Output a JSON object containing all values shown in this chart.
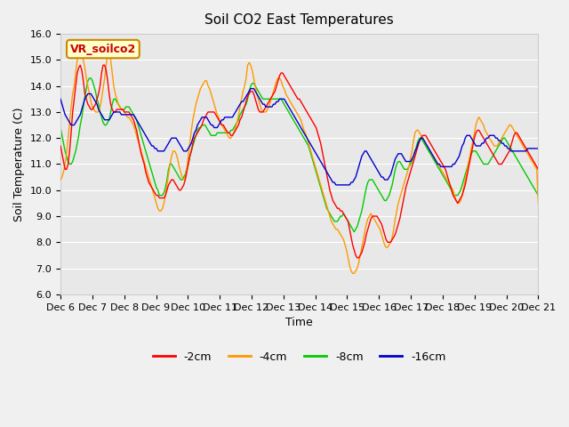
{
  "title": "Soil CO2 East Temperatures",
  "xlabel": "Time",
  "ylabel": "Soil Temperature (C)",
  "ylim": [
    6.0,
    16.0
  ],
  "yticks": [
    6.0,
    7.0,
    8.0,
    9.0,
    10.0,
    11.0,
    12.0,
    13.0,
    14.0,
    15.0,
    16.0
  ],
  "xtick_labels": [
    "Dec 6",
    "Dec 7",
    "Dec 8",
    "Dec 9",
    "Dec 10",
    "Dec 11",
    "Dec 12",
    "Dec 13",
    "Dec 14",
    "Dec 15",
    "Dec 16",
    "Dec 17",
    "Dec 18",
    "Dec 19",
    "Dec 20",
    "Dec 21"
  ],
  "annotation_text": "VR_soilco2",
  "annotation_box_color": "#ffffcc",
  "annotation_text_color": "#cc0000",
  "colors": {
    "m2cm": "#ff0000",
    "m4cm": "#ff9900",
    "m8cm": "#00cc00",
    "m16cm": "#0000cc"
  },
  "legend_labels": [
    "-2cm",
    "-4cm",
    "-8cm",
    "-16cm"
  ],
  "background_color": "#e8e8e8",
  "data_2cm": [
    11.7,
    11.4,
    11.1,
    10.8,
    10.8,
    11.0,
    11.5,
    12.2,
    13.0,
    13.5,
    14.0,
    14.5,
    14.7,
    14.8,
    14.6,
    14.2,
    13.7,
    13.5,
    13.3,
    13.2,
    13.1,
    13.1,
    13.2,
    13.3,
    13.5,
    13.7,
    14.0,
    14.5,
    14.8,
    14.8,
    14.6,
    14.2,
    13.7,
    13.3,
    13.1,
    13.0,
    13.0,
    13.1,
    13.1,
    13.1,
    13.1,
    13.1,
    13.0,
    13.0,
    13.0,
    13.0,
    12.9,
    12.8,
    12.7,
    12.5,
    12.3,
    12.0,
    11.7,
    11.4,
    11.2,
    11.0,
    10.7,
    10.5,
    10.3,
    10.2,
    10.1,
    10.0,
    9.9,
    9.8,
    9.8,
    9.7,
    9.7,
    9.7,
    9.7,
    9.8,
    10.0,
    10.2,
    10.3,
    10.4,
    10.4,
    10.3,
    10.2,
    10.1,
    10.0,
    10.0,
    10.1,
    10.2,
    10.4,
    10.7,
    11.0,
    11.3,
    11.5,
    11.8,
    12.0,
    12.1,
    12.2,
    12.3,
    12.4,
    12.5,
    12.7,
    12.8,
    12.9,
    13.0,
    13.0,
    13.0,
    13.0,
    13.0,
    12.9,
    12.8,
    12.7,
    12.6,
    12.5,
    12.5,
    12.4,
    12.3,
    12.2,
    12.2,
    12.1,
    12.1,
    12.2,
    12.3,
    12.4,
    12.5,
    12.7,
    12.8,
    13.0,
    13.2,
    13.4,
    13.6,
    13.7,
    13.8,
    13.8,
    13.7,
    13.5,
    13.3,
    13.1,
    13.0,
    13.0,
    13.0,
    13.1,
    13.2,
    13.3,
    13.4,
    13.5,
    13.6,
    13.7,
    13.8,
    14.0,
    14.2,
    14.4,
    14.5,
    14.5,
    14.4,
    14.3,
    14.2,
    14.1,
    14.0,
    13.9,
    13.8,
    13.7,
    13.6,
    13.5,
    13.5,
    13.4,
    13.3,
    13.2,
    13.1,
    13.0,
    12.9,
    12.8,
    12.7,
    12.6,
    12.5,
    12.4,
    12.2,
    12.0,
    11.8,
    11.5,
    11.2,
    10.9,
    10.6,
    10.3,
    10.0,
    9.8,
    9.6,
    9.5,
    9.4,
    9.3,
    9.3,
    9.2,
    9.2,
    9.1,
    9.0,
    8.9,
    8.8,
    8.5,
    8.2,
    7.9,
    7.7,
    7.5,
    7.4,
    7.4,
    7.5,
    7.6,
    7.8,
    8.0,
    8.3,
    8.5,
    8.7,
    8.9,
    9.0,
    9.0,
    9.0,
    9.0,
    8.9,
    8.8,
    8.7,
    8.5,
    8.3,
    8.1,
    8.0,
    8.0,
    8.0,
    8.1,
    8.2,
    8.3,
    8.5,
    8.7,
    8.9,
    9.2,
    9.5,
    9.8,
    10.1,
    10.3,
    10.5,
    10.7,
    10.9,
    11.1,
    11.3,
    11.5,
    11.7,
    11.9,
    12.0,
    12.1,
    12.1,
    12.1,
    12.0,
    11.9,
    11.8,
    11.7,
    11.6,
    11.5,
    11.4,
    11.3,
    11.2,
    11.1,
    11.0,
    10.9,
    10.8,
    10.6,
    10.4,
    10.2,
    10.0,
    9.8,
    9.7,
    9.6,
    9.5,
    9.6,
    9.7,
    9.8,
    10.0,
    10.2,
    10.5,
    10.8,
    11.1,
    11.4,
    11.7,
    12.0,
    12.2,
    12.3,
    12.3,
    12.2,
    12.1,
    12.0,
    11.9,
    11.8,
    11.7,
    11.6,
    11.5,
    11.4,
    11.3,
    11.2,
    11.1,
    11.0,
    11.0,
    11.0,
    11.1,
    11.2,
    11.3,
    11.4,
    11.5,
    11.7,
    11.9,
    12.1,
    12.2,
    12.2,
    12.1,
    12.0,
    11.9,
    11.8,
    11.7,
    11.6,
    11.5,
    11.4,
    11.3,
    11.2,
    11.1,
    11.0,
    10.9,
    10.8,
    10.6,
    10.4,
    10.2,
    10.0,
    9.9,
    9.8
  ],
  "data_4cm": [
    10.4,
    10.5,
    10.7,
    11.0,
    11.4,
    12.0,
    12.6,
    13.2,
    13.7,
    14.0,
    14.5,
    15.0,
    15.2,
    15.3,
    15.2,
    15.0,
    14.7,
    14.3,
    14.0,
    13.7,
    13.4,
    13.2,
    13.1,
    13.0,
    13.0,
    13.0,
    13.2,
    13.5,
    13.9,
    14.3,
    14.8,
    15.2,
    15.3,
    15.0,
    14.5,
    14.0,
    13.7,
    13.5,
    13.3,
    13.2,
    13.1,
    13.1,
    13.0,
    12.9,
    12.8,
    12.8,
    12.7,
    12.6,
    12.5,
    12.3,
    12.1,
    11.9,
    11.7,
    11.5,
    11.3,
    11.1,
    10.9,
    10.7,
    10.5,
    10.3,
    10.1,
    9.9,
    9.7,
    9.5,
    9.3,
    9.2,
    9.2,
    9.3,
    9.5,
    9.8,
    10.2,
    10.6,
    11.0,
    11.3,
    11.5,
    11.5,
    11.4,
    11.2,
    10.9,
    10.7,
    10.5,
    10.4,
    10.5,
    10.8,
    11.3,
    11.8,
    12.3,
    12.7,
    13.0,
    13.3,
    13.5,
    13.7,
    13.9,
    14.0,
    14.1,
    14.2,
    14.2,
    14.0,
    13.9,
    13.7,
    13.5,
    13.3,
    13.1,
    12.9,
    12.8,
    12.6,
    12.5,
    12.4,
    12.3,
    12.2,
    12.1,
    12.0,
    12.0,
    12.1,
    12.2,
    12.4,
    12.6,
    12.9,
    13.2,
    13.5,
    13.8,
    14.0,
    14.3,
    14.8,
    14.9,
    14.8,
    14.6,
    14.3,
    14.0,
    13.7,
    13.5,
    13.3,
    13.1,
    13.0,
    13.0,
    13.0,
    13.1,
    13.2,
    13.4,
    13.6,
    13.8,
    14.0,
    14.2,
    14.3,
    14.3,
    14.2,
    14.0,
    13.9,
    13.7,
    13.6,
    13.5,
    13.4,
    13.3,
    13.2,
    13.1,
    13.0,
    12.9,
    12.8,
    12.7,
    12.5,
    12.3,
    12.2,
    12.0,
    11.8,
    11.6,
    11.4,
    11.2,
    11.0,
    10.8,
    10.6,
    10.4,
    10.2,
    10.0,
    9.8,
    9.6,
    9.4,
    9.2,
    9.0,
    8.8,
    8.7,
    8.6,
    8.5,
    8.5,
    8.4,
    8.3,
    8.2,
    8.1,
    7.9,
    7.7,
    7.4,
    7.1,
    6.9,
    6.8,
    6.8,
    6.9,
    7.0,
    7.2,
    7.5,
    7.8,
    8.1,
    8.4,
    8.7,
    8.9,
    9.0,
    9.1,
    9.0,
    8.9,
    8.8,
    8.7,
    8.6,
    8.5,
    8.3,
    8.1,
    7.9,
    7.8,
    7.8,
    7.9,
    8.0,
    8.2,
    8.5,
    8.9,
    9.2,
    9.5,
    9.7,
    9.9,
    10.1,
    10.3,
    10.5,
    10.7,
    10.9,
    11.2,
    11.5,
    11.9,
    12.2,
    12.3,
    12.3,
    12.2,
    12.1,
    12.0,
    11.9,
    11.8,
    11.7,
    11.6,
    11.5,
    11.4,
    11.3,
    11.2,
    11.1,
    11.0,
    10.9,
    10.8,
    10.7,
    10.6,
    10.5,
    10.4,
    10.3,
    10.2,
    10.1,
    10.0,
    9.8,
    9.6,
    9.5,
    9.5,
    9.6,
    9.8,
    10.1,
    10.4,
    10.7,
    11.0,
    11.3,
    11.6,
    11.9,
    12.2,
    12.5,
    12.7,
    12.8,
    12.7,
    12.6,
    12.5,
    12.3,
    12.2,
    12.1,
    12.0,
    11.9,
    11.8,
    11.7,
    11.7,
    11.7,
    11.8,
    11.9,
    12.0,
    12.1,
    12.2,
    12.3,
    12.4,
    12.5,
    12.5,
    12.4,
    12.3,
    12.2,
    12.1,
    12.0,
    11.9,
    11.8,
    11.7,
    11.6,
    11.5,
    11.4,
    11.3,
    11.2,
    11.1,
    11.0,
    10.9,
    10.8,
    9.5
  ],
  "data_8cm": [
    12.4,
    12.1,
    11.8,
    11.5,
    11.3,
    11.1,
    11.0,
    11.0,
    11.1,
    11.3,
    11.5,
    11.8,
    12.1,
    12.5,
    12.8,
    13.2,
    13.6,
    13.9,
    14.2,
    14.3,
    14.3,
    14.2,
    14.0,
    13.8,
    13.5,
    13.3,
    13.0,
    12.8,
    12.6,
    12.5,
    12.5,
    12.6,
    12.7,
    13.0,
    13.3,
    13.5,
    13.5,
    13.4,
    13.3,
    13.2,
    13.1,
    13.1,
    13.1,
    13.2,
    13.2,
    13.2,
    13.1,
    13.0,
    12.9,
    12.8,
    12.7,
    12.5,
    12.3,
    12.1,
    11.9,
    11.7,
    11.5,
    11.3,
    11.1,
    10.9,
    10.7,
    10.5,
    10.3,
    10.1,
    10.0,
    9.8,
    9.8,
    9.8,
    9.9,
    10.1,
    10.4,
    10.8,
    11.0,
    11.0,
    10.9,
    10.8,
    10.7,
    10.6,
    10.5,
    10.4,
    10.4,
    10.5,
    10.6,
    10.8,
    11.0,
    11.3,
    11.5,
    11.7,
    11.9,
    12.1,
    12.3,
    12.4,
    12.4,
    12.5,
    12.5,
    12.5,
    12.4,
    12.3,
    12.2,
    12.1,
    12.1,
    12.1,
    12.1,
    12.2,
    12.2,
    12.2,
    12.2,
    12.2,
    12.2,
    12.2,
    12.2,
    12.2,
    12.3,
    12.3,
    12.4,
    12.5,
    12.6,
    12.7,
    12.9,
    13.0,
    13.1,
    13.2,
    13.3,
    13.5,
    13.8,
    14.0,
    14.1,
    14.1,
    14.0,
    13.9,
    13.8,
    13.7,
    13.6,
    13.5,
    13.5,
    13.5,
    13.5,
    13.5,
    13.5,
    13.5,
    13.5,
    13.5,
    13.5,
    13.5,
    13.5,
    13.5,
    13.4,
    13.3,
    13.2,
    13.1,
    13.0,
    12.9,
    12.8,
    12.7,
    12.6,
    12.5,
    12.4,
    12.3,
    12.2,
    12.1,
    12.0,
    11.9,
    11.8,
    11.7,
    11.5,
    11.3,
    11.1,
    10.9,
    10.7,
    10.5,
    10.3,
    10.1,
    9.9,
    9.7,
    9.5,
    9.3,
    9.2,
    9.1,
    9.0,
    8.9,
    8.8,
    8.8,
    8.8,
    8.9,
    9.0,
    9.0,
    9.1,
    9.0,
    8.9,
    8.8,
    8.7,
    8.6,
    8.5,
    8.4,
    8.5,
    8.6,
    8.8,
    9.0,
    9.2,
    9.5,
    9.8,
    10.1,
    10.3,
    10.4,
    10.4,
    10.4,
    10.3,
    10.2,
    10.1,
    10.0,
    9.9,
    9.8,
    9.7,
    9.6,
    9.6,
    9.7,
    9.8,
    10.0,
    10.2,
    10.5,
    10.8,
    11.0,
    11.1,
    11.1,
    11.0,
    10.9,
    10.8,
    10.8,
    10.8,
    10.9,
    11.0,
    11.1,
    11.3,
    11.5,
    11.7,
    11.9,
    12.0,
    12.0,
    11.9,
    11.8,
    11.7,
    11.6,
    11.5,
    11.4,
    11.3,
    11.2,
    11.1,
    11.0,
    10.9,
    10.8,
    10.7,
    10.6,
    10.5,
    10.4,
    10.3,
    10.2,
    10.1,
    10.0,
    9.9,
    9.8,
    9.8,
    9.8,
    9.9,
    10.0,
    10.2,
    10.4,
    10.6,
    10.8,
    11.0,
    11.2,
    11.4,
    11.5,
    11.5,
    11.5,
    11.4,
    11.3,
    11.2,
    11.1,
    11.0,
    11.0,
    11.0,
    11.0,
    11.1,
    11.2,
    11.3,
    11.4,
    11.5,
    11.6,
    11.7,
    11.8,
    11.9,
    12.0,
    12.0,
    11.9,
    11.8,
    11.7,
    11.6,
    11.5,
    11.4,
    11.3,
    11.2,
    11.1,
    11.0,
    10.9,
    10.8,
    10.7,
    10.6,
    10.5,
    10.4,
    10.3,
    10.2,
    10.1,
    10.0,
    9.9,
    9.8,
    9.7
  ],
  "data_16cm": [
    13.5,
    13.3,
    13.1,
    12.9,
    12.8,
    12.7,
    12.6,
    12.5,
    12.5,
    12.5,
    12.6,
    12.7,
    12.8,
    12.9,
    13.1,
    13.3,
    13.5,
    13.6,
    13.7,
    13.7,
    13.7,
    13.6,
    13.5,
    13.4,
    13.3,
    13.1,
    13.0,
    12.9,
    12.8,
    12.7,
    12.7,
    12.7,
    12.7,
    12.8,
    12.9,
    13.0,
    13.0,
    13.0,
    13.0,
    13.0,
    12.9,
    12.9,
    12.9,
    12.9,
    12.9,
    12.9,
    12.9,
    12.9,
    12.9,
    12.8,
    12.7,
    12.6,
    12.5,
    12.4,
    12.3,
    12.2,
    12.1,
    12.0,
    11.9,
    11.8,
    11.7,
    11.7,
    11.6,
    11.6,
    11.5,
    11.5,
    11.5,
    11.5,
    11.5,
    11.6,
    11.7,
    11.8,
    11.9,
    12.0,
    12.0,
    12.0,
    12.0,
    11.9,
    11.8,
    11.7,
    11.6,
    11.5,
    11.5,
    11.5,
    11.6,
    11.7,
    11.8,
    12.0,
    12.2,
    12.3,
    12.5,
    12.6,
    12.7,
    12.8,
    12.8,
    12.8,
    12.8,
    12.7,
    12.6,
    12.5,
    12.5,
    12.4,
    12.4,
    12.4,
    12.5,
    12.6,
    12.7,
    12.7,
    12.8,
    12.8,
    12.8,
    12.8,
    12.8,
    12.8,
    12.9,
    13.0,
    13.1,
    13.2,
    13.3,
    13.4,
    13.4,
    13.5,
    13.6,
    13.7,
    13.8,
    13.9,
    13.9,
    13.9,
    13.8,
    13.7,
    13.6,
    13.5,
    13.4,
    13.3,
    13.3,
    13.2,
    13.2,
    13.2,
    13.2,
    13.2,
    13.3,
    13.3,
    13.4,
    13.4,
    13.5,
    13.5,
    13.5,
    13.5,
    13.4,
    13.3,
    13.2,
    13.1,
    13.0,
    12.9,
    12.8,
    12.7,
    12.6,
    12.5,
    12.4,
    12.3,
    12.2,
    12.1,
    12.0,
    11.9,
    11.8,
    11.7,
    11.6,
    11.5,
    11.4,
    11.3,
    11.2,
    11.1,
    11.0,
    10.9,
    10.8,
    10.7,
    10.6,
    10.5,
    10.4,
    10.3,
    10.3,
    10.2,
    10.2,
    10.2,
    10.2,
    10.2,
    10.2,
    10.2,
    10.2,
    10.2,
    10.2,
    10.3,
    10.3,
    10.4,
    10.5,
    10.7,
    10.9,
    11.1,
    11.3,
    11.4,
    11.5,
    11.5,
    11.4,
    11.3,
    11.2,
    11.1,
    11.0,
    10.9,
    10.8,
    10.7,
    10.6,
    10.5,
    10.5,
    10.4,
    10.4,
    10.4,
    10.5,
    10.6,
    10.8,
    11.0,
    11.2,
    11.3,
    11.4,
    11.4,
    11.4,
    11.3,
    11.2,
    11.1,
    11.1,
    11.1,
    11.1,
    11.2,
    11.3,
    11.5,
    11.6,
    11.8,
    11.9,
    12.0,
    12.0,
    11.9,
    11.8,
    11.7,
    11.6,
    11.5,
    11.4,
    11.3,
    11.2,
    11.1,
    11.0,
    11.0,
    10.9,
    10.9,
    10.9,
    10.9,
    10.9,
    10.9,
    10.9,
    10.9,
    11.0,
    11.0,
    11.1,
    11.2,
    11.3,
    11.5,
    11.7,
    11.8,
    12.0,
    12.1,
    12.1,
    12.1,
    12.0,
    11.9,
    11.8,
    11.7,
    11.7,
    11.7,
    11.7,
    11.8,
    11.8,
    11.9,
    12.0,
    12.0,
    12.1,
    12.1,
    12.1,
    12.1,
    12.0,
    12.0,
    11.9,
    11.9,
    11.8,
    11.8,
    11.7,
    11.7,
    11.6,
    11.6,
    11.5,
    11.5,
    11.5,
    11.5,
    11.5,
    11.5,
    11.5,
    11.5,
    11.5,
    11.5,
    11.5,
    11.6,
    11.6,
    11.6,
    11.6,
    11.6,
    11.6,
    11.6,
    11.6
  ]
}
